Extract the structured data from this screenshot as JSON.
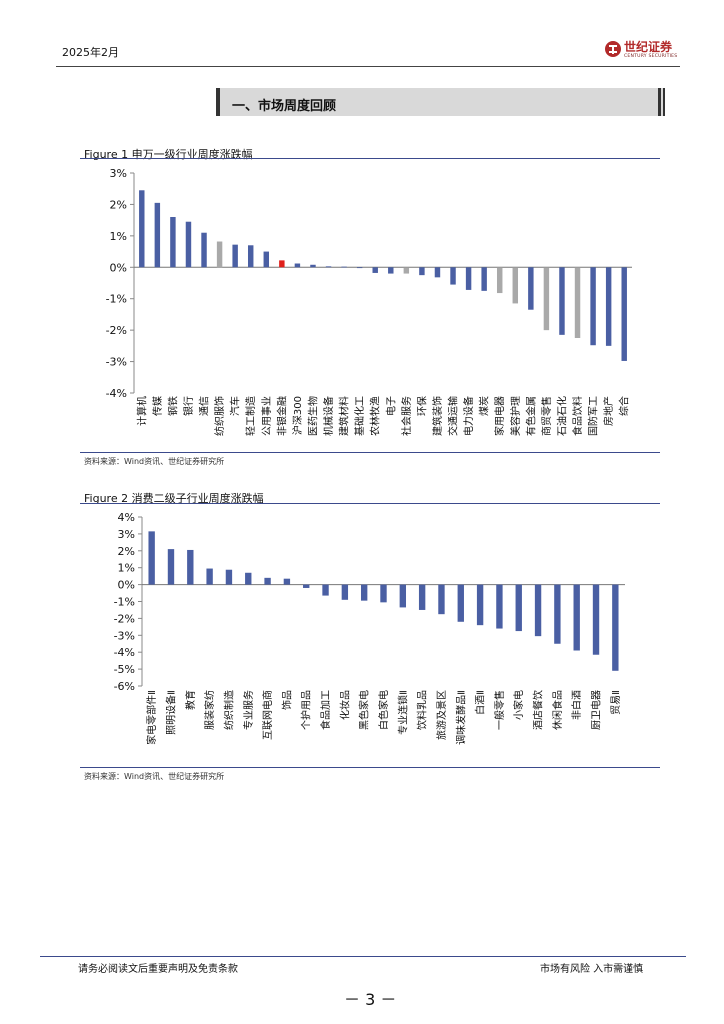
{
  "header": {
    "date": "2025年2月",
    "logo_text": "世纪证券",
    "logo_sub": "CENTURY SECURITIES"
  },
  "section": {
    "title": "一、市场周度回顾"
  },
  "figure1": {
    "title": "Figure 1  申万一级行业周度涨跌幅",
    "source": "资料来源：Wind资讯、世纪证券研究所"
  },
  "figure2": {
    "title": "Figure 2  消费二级子行业周度涨跌幅",
    "source": "资料来源：Wind资讯、世纪证券研究所"
  },
  "footer": {
    "left": "请务必阅读文后重要声明及免责条款",
    "right": "市场有风险  入市需谨慎",
    "page": "－ 3 －"
  },
  "colors": {
    "bar_blue": "#4a5fa3",
    "bar_gray": "#a9a9a9",
    "bar_red": "#e0201b"
  },
  "chart_data": [
    {
      "type": "bar",
      "title": "Figure 1  申万一级行业周度涨跌幅",
      "ylim": [
        -4,
        3
      ],
      "yticks": [
        "3%",
        "2%",
        "1%",
        "0%",
        "-1%",
        "-2%",
        "-3%",
        "-4%"
      ],
      "categories": [
        "计算机",
        "传媒",
        "钢铁",
        "银行",
        "通信",
        "纺织服饰",
        "汽车",
        "轻工制造",
        "公用事业",
        "非银金融",
        "沪深300",
        "医药生物",
        "机械设备",
        "建筑材料",
        "基础化工",
        "农林牧渔",
        "电子",
        "社会服务",
        "环保",
        "建筑装饰",
        "交通运输",
        "电力设备",
        "煤炭",
        "家用电器",
        "美容护理",
        "有色金属",
        "商贸零售",
        "石油石化",
        "食品饮料",
        "国防军工",
        "房地产",
        "综合"
      ],
      "values": [
        2.45,
        2.05,
        1.6,
        1.45,
        1.1,
        0.82,
        0.72,
        0.7,
        0.5,
        0.22,
        0.12,
        0.08,
        0.03,
        0.02,
        -0.02,
        -0.18,
        -0.2,
        -0.2,
        -0.25,
        -0.32,
        -0.55,
        -0.72,
        -0.75,
        -0.82,
        -1.15,
        -1.35,
        -2.0,
        -2.15,
        -2.25,
        -2.48,
        -2.5,
        -2.98
      ],
      "bar_colors": [
        "blue",
        "blue",
        "blue",
        "blue",
        "blue",
        "gray",
        "blue",
        "blue",
        "blue",
        "red",
        "blue",
        "blue",
        "blue",
        "blue",
        "blue",
        "blue",
        "blue",
        "gray",
        "blue",
        "blue",
        "blue",
        "blue",
        "blue",
        "gray",
        "gray",
        "blue",
        "gray",
        "blue",
        "gray",
        "blue",
        "blue",
        "blue"
      ]
    },
    {
      "type": "bar",
      "title": "Figure 2  消费二级子行业周度涨跌幅",
      "ylim": [
        -6,
        4
      ],
      "yticks": [
        "4%",
        "3%",
        "2%",
        "1%",
        "0%",
        "-1%",
        "-2%",
        "-3%",
        "-4%",
        "-5%",
        "-6%"
      ],
      "categories": [
        "家电零部件Ⅱ",
        "照明设备Ⅱ",
        "教育",
        "服装家纺",
        "纺织制造",
        "专业服务",
        "互联网电商",
        "饰品",
        "个护用品",
        "食品加工",
        "化妆品",
        "黑色家电",
        "白色家电",
        "专业连锁Ⅱ",
        "饮料乳品",
        "旅游及景区",
        "调味发酵品Ⅱ",
        "白酒Ⅱ",
        "一般零售",
        "小家电",
        "酒店餐饮",
        "休闲食品",
        "非白酒",
        "厨卫电器",
        "贸易Ⅱ"
      ],
      "values": [
        3.15,
        2.1,
        2.05,
        0.95,
        0.88,
        0.7,
        0.4,
        0.35,
        -0.2,
        -0.65,
        -0.9,
        -0.95,
        -1.05,
        -1.35,
        -1.5,
        -1.75,
        -2.2,
        -2.4,
        -2.6,
        -2.75,
        -3.05,
        -3.5,
        -3.9,
        -4.15,
        -5.1
      ]
    }
  ]
}
